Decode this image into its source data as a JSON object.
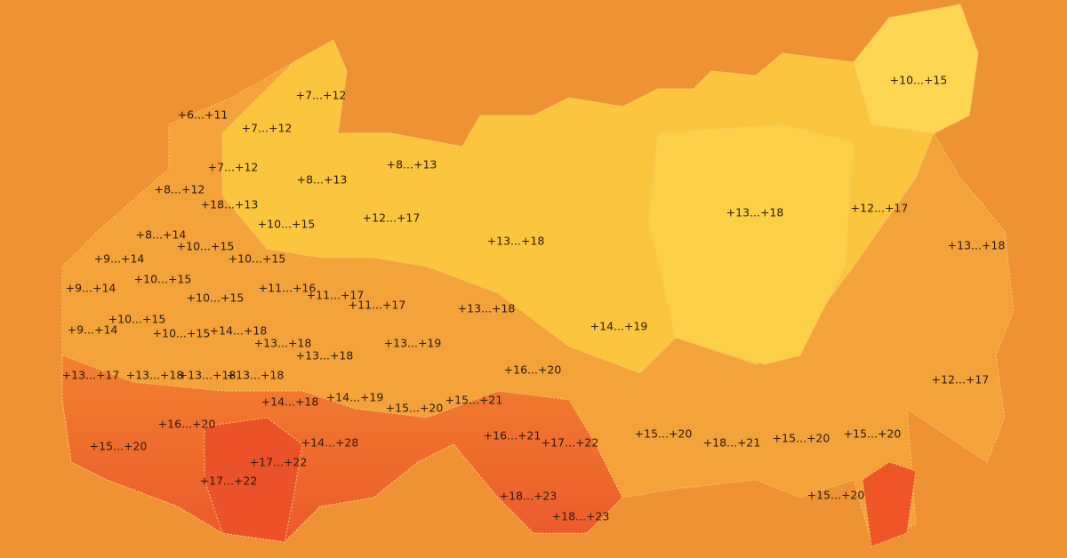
{
  "labels": [
    "+7...+12",
    "+6...+11",
    "+7...+12",
    "+7...+12",
    "+8...+13",
    "+8...+13",
    "+8...+12",
    "+18...+13",
    "+12...+17",
    "+10...+15",
    "+13...+18",
    "+12...+17",
    "+10...+15",
    "+8...+14",
    "+13...+18",
    "+13...+18",
    "+10...+15",
    "+9...+14",
    "+10...+15",
    "+10...+15",
    "+9...+14",
    "+11...+16",
    "+11...+17",
    "+10...+15",
    "+11...+17",
    "+13...+18",
    "+10...+15",
    "+9...+14",
    "+14...+18",
    "+10...+15",
    "+14...+19",
    "+13...+18",
    "+13...+19",
    "+13...+18",
    "+16...+20",
    "+13...+17",
    "+13...+18",
    "+13...+18",
    "+13...+18",
    "+12...+17",
    "+14...+19",
    "+14...+18",
    "+15...+21",
    "+15...+20",
    "+16...+20",
    "+16...+21",
    "+15...+20",
    "+15...+20",
    "+15...+20",
    "+17...+22",
    "+18...+21",
    "+14...+28",
    "+15...+20",
    "+17...+22",
    "+17...+22",
    "+18...+23",
    "+15...+20",
    "+18...+23"
  ]
}
